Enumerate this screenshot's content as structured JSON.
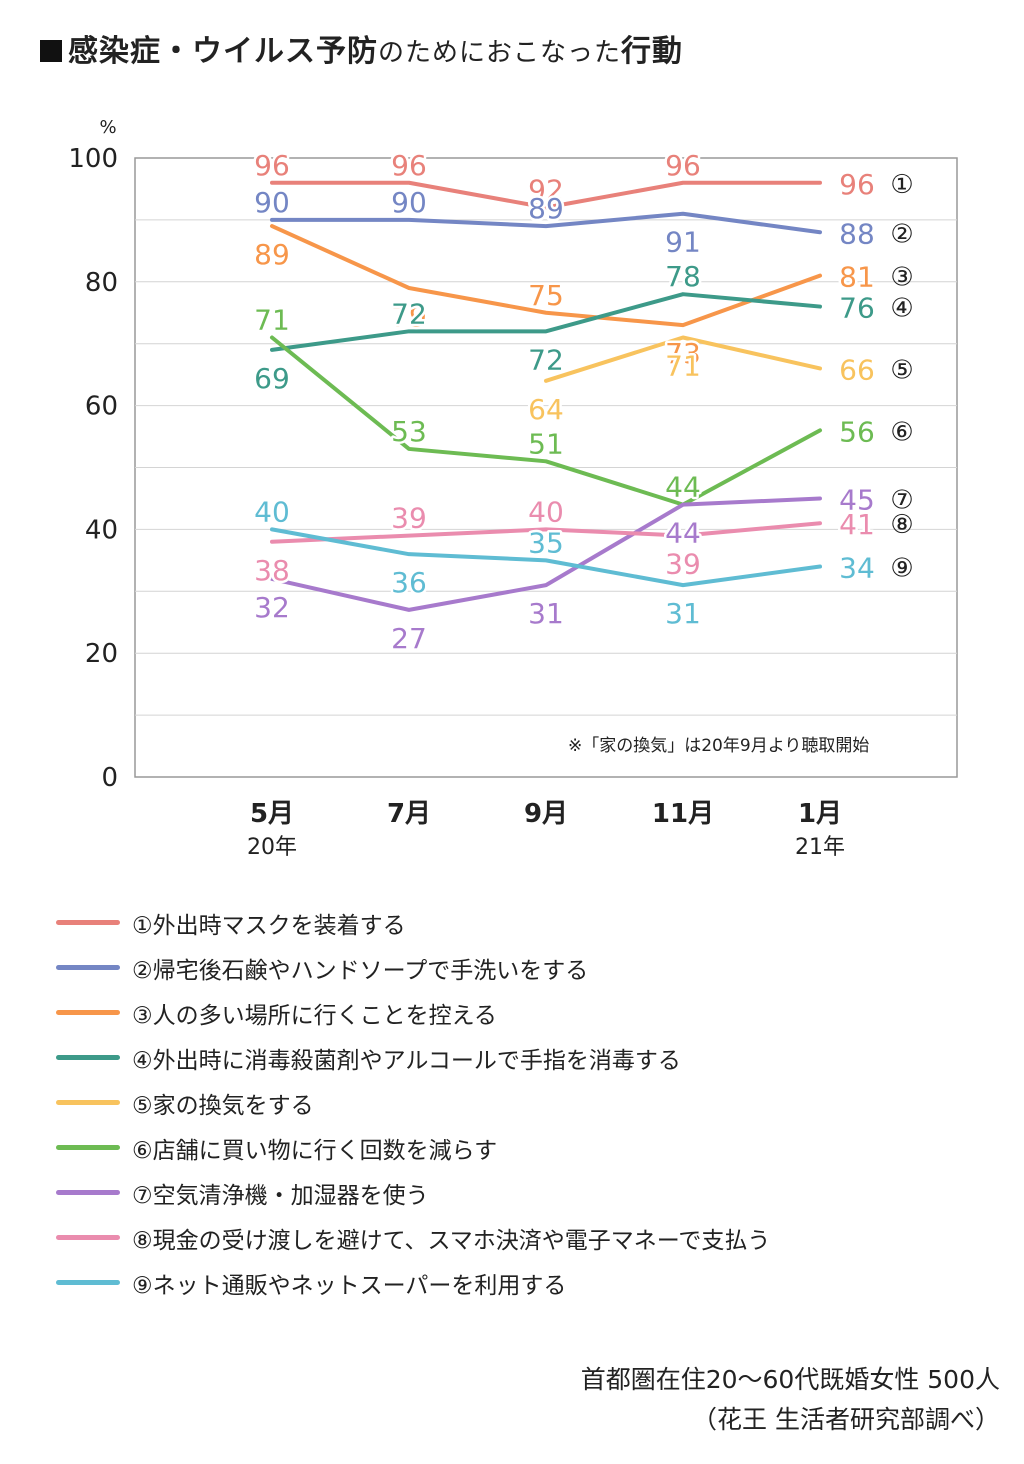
{
  "title": {
    "bold": "感染症・ウイルス予防",
    "light": "のためにおこなった",
    "bold2": "行動"
  },
  "note": "※「家の換気」は20年9月より聴取開始",
  "source": [
    "首都圏在住20〜60代既婚女性 500人",
    "（花王 生活者研究部調べ）"
  ],
  "chart_data": {
    "type": "line",
    "ylabel": "%",
    "ylim": [
      0,
      100
    ],
    "yticks": [
      0,
      20,
      40,
      60,
      80,
      100
    ],
    "categories": [
      {
        "month": "5月",
        "year": "20年"
      },
      {
        "month": "7月",
        "year": ""
      },
      {
        "month": "9月",
        "year": ""
      },
      {
        "month": "11月",
        "year": ""
      },
      {
        "month": "1月",
        "year": "21年"
      }
    ],
    "series": [
      {
        "marker": "①",
        "name": "①外出時マスクを装着する",
        "color": "#e8817a",
        "values": [
          96,
          96,
          92,
          96,
          96
        ],
        "label_pos": [
          "a",
          "a",
          "a",
          "a",
          "r"
        ]
      },
      {
        "marker": "②",
        "name": "②帰宅後石鹸やハンドソープで手洗いをする",
        "color": "#7486c4",
        "values": [
          90,
          90,
          89,
          91,
          88
        ],
        "label_pos": [
          "a",
          "a",
          "a",
          "b",
          "r"
        ]
      },
      {
        "marker": "③",
        "name": "③人の多い場所に行くことを控える",
        "color": "#f7964a",
        "values": [
          89,
          79,
          75,
          73,
          81
        ],
        "label_pos": [
          "b",
          "b",
          "a",
          "b",
          "r"
        ]
      },
      {
        "marker": "④",
        "name": "④外出時に消毒殺菌剤やアルコールで手指を消毒する",
        "color": "#3d9a89",
        "values": [
          69,
          72,
          72,
          78,
          76
        ],
        "label_pos": [
          "b",
          "a",
          "b",
          "a",
          "r"
        ]
      },
      {
        "marker": "⑤",
        "name": "⑤家の換気をする",
        "color": "#f8c35e",
        "values": [
          null,
          null,
          64,
          71,
          66
        ],
        "label_pos": [
          "",
          "",
          "b",
          "b",
          "r"
        ]
      },
      {
        "marker": "⑥",
        "name": "⑥店舗に買い物に行く回数を減らす",
        "color": "#6dbb53",
        "values": [
          71,
          53,
          51,
          44,
          56
        ],
        "label_pos": [
          "a",
          "a",
          "a",
          "a",
          "r"
        ]
      },
      {
        "marker": "⑦",
        "name": "⑦空気清浄機・加湿器を使う",
        "color": "#a77acc",
        "values": [
          32,
          27,
          31,
          44,
          45
        ],
        "label_pos": [
          "b",
          "b",
          "b",
          "b",
          "r"
        ]
      },
      {
        "marker": "⑧",
        "name": "⑧現金の受け渡しを避けて、スマホ決済や電子マネーで支払う",
        "color": "#ea8cae",
        "values": [
          38,
          39,
          40,
          39,
          41
        ],
        "label_pos": [
          "b",
          "a",
          "a",
          "b",
          "r"
        ]
      },
      {
        "marker": "⑨",
        "name": "⑨ネット通販やネットスーパーを利用する",
        "color": "#5fbcd3",
        "values": [
          40,
          36,
          35,
          31,
          34
        ],
        "label_pos": [
          "a",
          "b",
          "a",
          "b",
          "r"
        ]
      }
    ]
  }
}
